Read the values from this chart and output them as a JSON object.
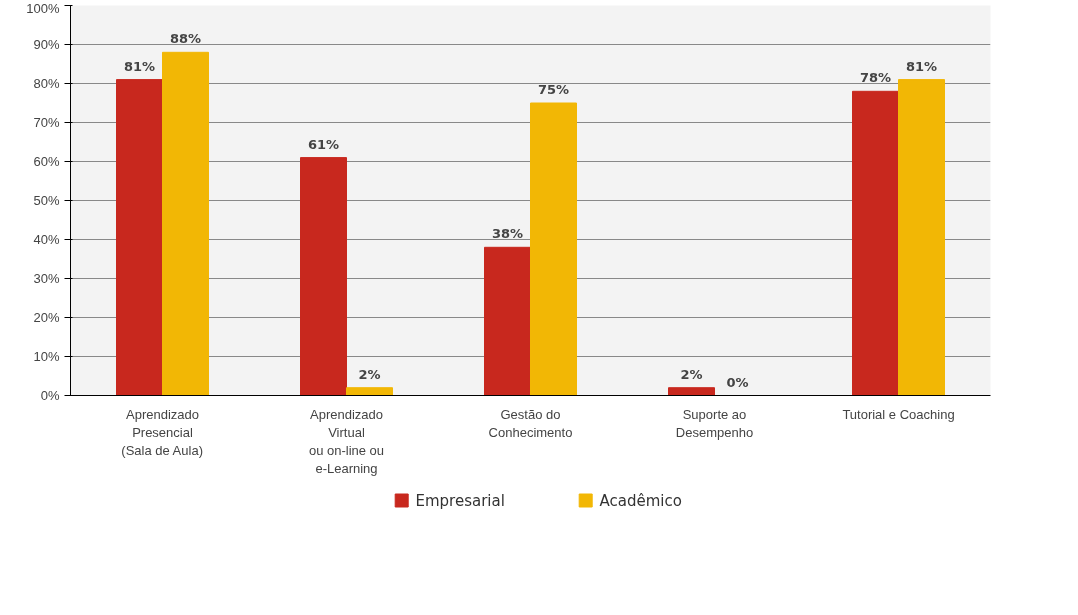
{
  "chart_data": {
    "type": "bar",
    "categories": [
      "Aprendizado\nPresencial\n(Sala de Aula)",
      "Aprendizado\nVirtual\nou on-line ou\ne-Learning",
      "Gestão do\nConhecimento",
      "Suporte ao\nDesempenho",
      "Tutorial e Coaching"
    ],
    "series": [
      {
        "name": "Empresarial",
        "color": "#c8281e",
        "values": [
          81,
          61,
          38,
          2,
          78
        ],
        "value_labels": [
          "81%",
          "61%",
          "38%",
          "2%",
          "78%"
        ]
      },
      {
        "name": "Acadêmico",
        "color": "#f2b705",
        "values": [
          88,
          2,
          75,
          0,
          81
        ],
        "value_labels": [
          "88%",
          "2%",
          "75%",
          "0%",
          "81%"
        ]
      }
    ],
    "ylim": [
      0,
      100
    ],
    "yticks": [
      {
        "value": 0,
        "label": "0%"
      },
      {
        "value": 10,
        "label": "10%"
      },
      {
        "value": 20,
        "label": "20%"
      },
      {
        "value": 30,
        "label": "30%"
      },
      {
        "value": 40,
        "label": "40%"
      },
      {
        "value": 50,
        "label": "50%"
      },
      {
        "value": 60,
        "label": "60%"
      },
      {
        "value": 70,
        "label": "70%"
      },
      {
        "value": 80,
        "label": "80%"
      },
      {
        "value": 90,
        "label": "90%"
      },
      {
        "value": 100,
        "label": "100%"
      }
    ],
    "grid": "y",
    "legend": "bottom"
  }
}
